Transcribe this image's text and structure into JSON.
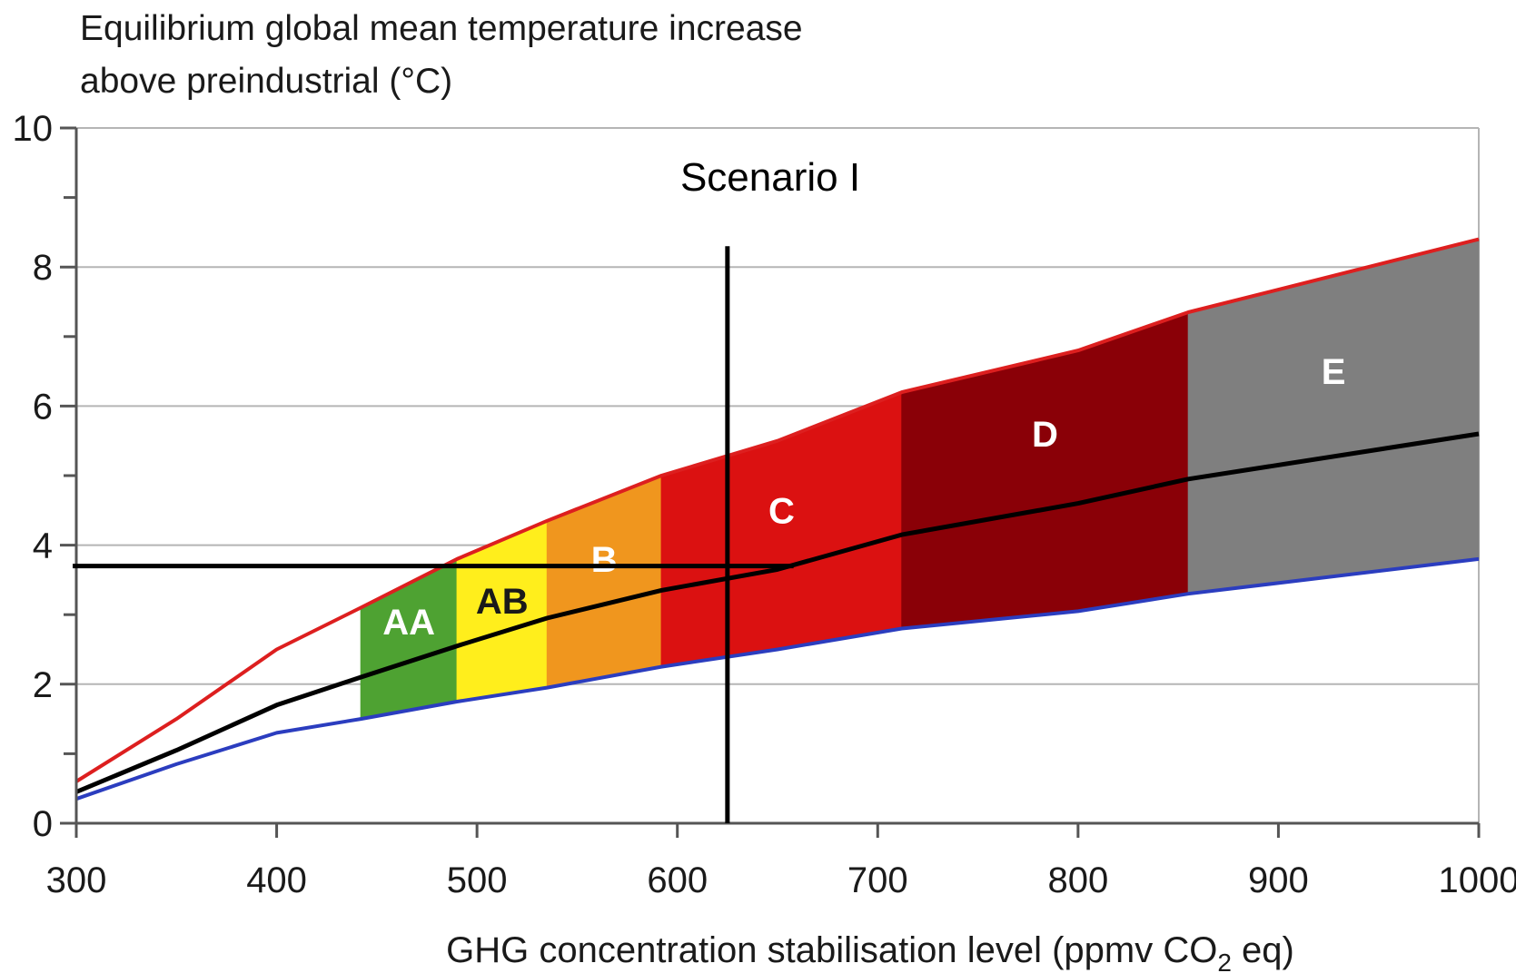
{
  "chart_data": {
    "type": "area",
    "ylabel_lines": [
      "Equilibrium global mean temperature increase",
      "above preindustrial (°C)"
    ],
    "xlabel": {
      "before": "GHG concentration stabilisation level (ppmv CO",
      "subscript": "2",
      "after": " eq)"
    },
    "xlim": [
      300,
      1000
    ],
    "ylim": [
      0,
      10
    ],
    "x_ticks": [
      300,
      400,
      500,
      600,
      700,
      800,
      900,
      1000
    ],
    "y_ticks": [
      0,
      2,
      4,
      6,
      8,
      10
    ],
    "grid": "horizontal",
    "series": [
      {
        "role": "upper",
        "color": "#dd1f1f",
        "points": [
          [
            300,
            0.6
          ],
          [
            350,
            1.5
          ],
          [
            400,
            2.5
          ],
          [
            442,
            3.1
          ],
          [
            490,
            3.8
          ],
          [
            535,
            4.35
          ],
          [
            592,
            5.0
          ],
          [
            650,
            5.5
          ],
          [
            712,
            6.2
          ],
          [
            800,
            6.8
          ],
          [
            855,
            7.35
          ],
          [
            1000,
            8.4
          ]
        ]
      },
      {
        "role": "best-estimate",
        "color": "#000000",
        "points": [
          [
            300,
            0.45
          ],
          [
            350,
            1.05
          ],
          [
            400,
            1.7
          ],
          [
            442,
            2.1
          ],
          [
            490,
            2.55
          ],
          [
            535,
            2.95
          ],
          [
            592,
            3.35
          ],
          [
            650,
            3.65
          ],
          [
            712,
            4.15
          ],
          [
            800,
            4.6
          ],
          [
            855,
            4.95
          ],
          [
            1000,
            5.6
          ]
        ]
      },
      {
        "role": "lower",
        "color": "#2b3dbf",
        "points": [
          [
            300,
            0.35
          ],
          [
            350,
            0.85
          ],
          [
            400,
            1.3
          ],
          [
            442,
            1.5
          ],
          [
            490,
            1.75
          ],
          [
            535,
            1.95
          ],
          [
            592,
            2.25
          ],
          [
            650,
            2.5
          ],
          [
            712,
            2.8
          ],
          [
            800,
            3.05
          ],
          [
            855,
            3.3
          ],
          [
            1000,
            3.8
          ]
        ]
      }
    ],
    "bands": [
      {
        "label": "AA",
        "x0": 442,
        "x1": 490,
        "color": "#4ea232",
        "label_color": "#ffffff",
        "label_y": 2.9
      },
      {
        "label": "AB",
        "x0": 490,
        "x1": 535,
        "color": "#ffee1c",
        "label_color": "#1a1a1a",
        "label_y": 3.2
      },
      {
        "label": "B",
        "x0": 535,
        "x1": 592,
        "color": "#f0961e",
        "label_color": "#ffffff",
        "label_y": 3.8
      },
      {
        "label": "C",
        "x0": 592,
        "x1": 712,
        "color": "#db1111",
        "label_color": "#ffffff",
        "label_y": 4.5
      },
      {
        "label": "D",
        "x0": 712,
        "x1": 855,
        "color": "#8a0007",
        "label_color": "#ffffff",
        "label_y": 5.6
      },
      {
        "label": "E",
        "x0": 855,
        "x1": 1000,
        "color": "#7f7f7f",
        "label_color": "#ffffff",
        "label_y": 6.5
      }
    ],
    "scenario": {
      "label": "Scenario I",
      "x": 625,
      "x_top": 8.3,
      "y": 3.7,
      "h_from": 300,
      "h_to": 658
    }
  }
}
